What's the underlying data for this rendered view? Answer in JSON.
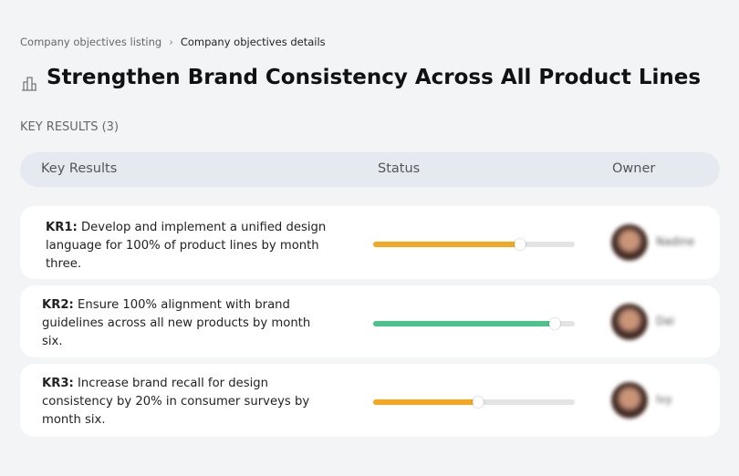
{
  "breadcrumb": {
    "parent": "Company objectives listing",
    "current": "Company objectives details"
  },
  "header": {
    "title": "Strengthen Brand Consistency Across All Product Lines"
  },
  "section_label": "KEY RESULTS (3)",
  "table": {
    "columns": [
      "Key Results",
      "Status",
      "Owner"
    ],
    "rows": [
      {
        "label": "KR1:",
        "text": "Develop and implement a unified design language for 100% of product lines by month three.",
        "progress": 73,
        "color": "#f5a623",
        "owner": "Nadine"
      },
      {
        "label": "KR2:",
        "text": "Ensure 100% alignment with brand guidelines across all new products by month six.",
        "progress": 90,
        "color": "#4cc38a",
        "owner": "Dai"
      },
      {
        "label": "KR3:",
        "text": "Increase brand recall for design consistency by 20% in consumer surveys by month six.",
        "progress": 52,
        "color": "#f5a623",
        "owner": "Ivy"
      }
    ]
  }
}
